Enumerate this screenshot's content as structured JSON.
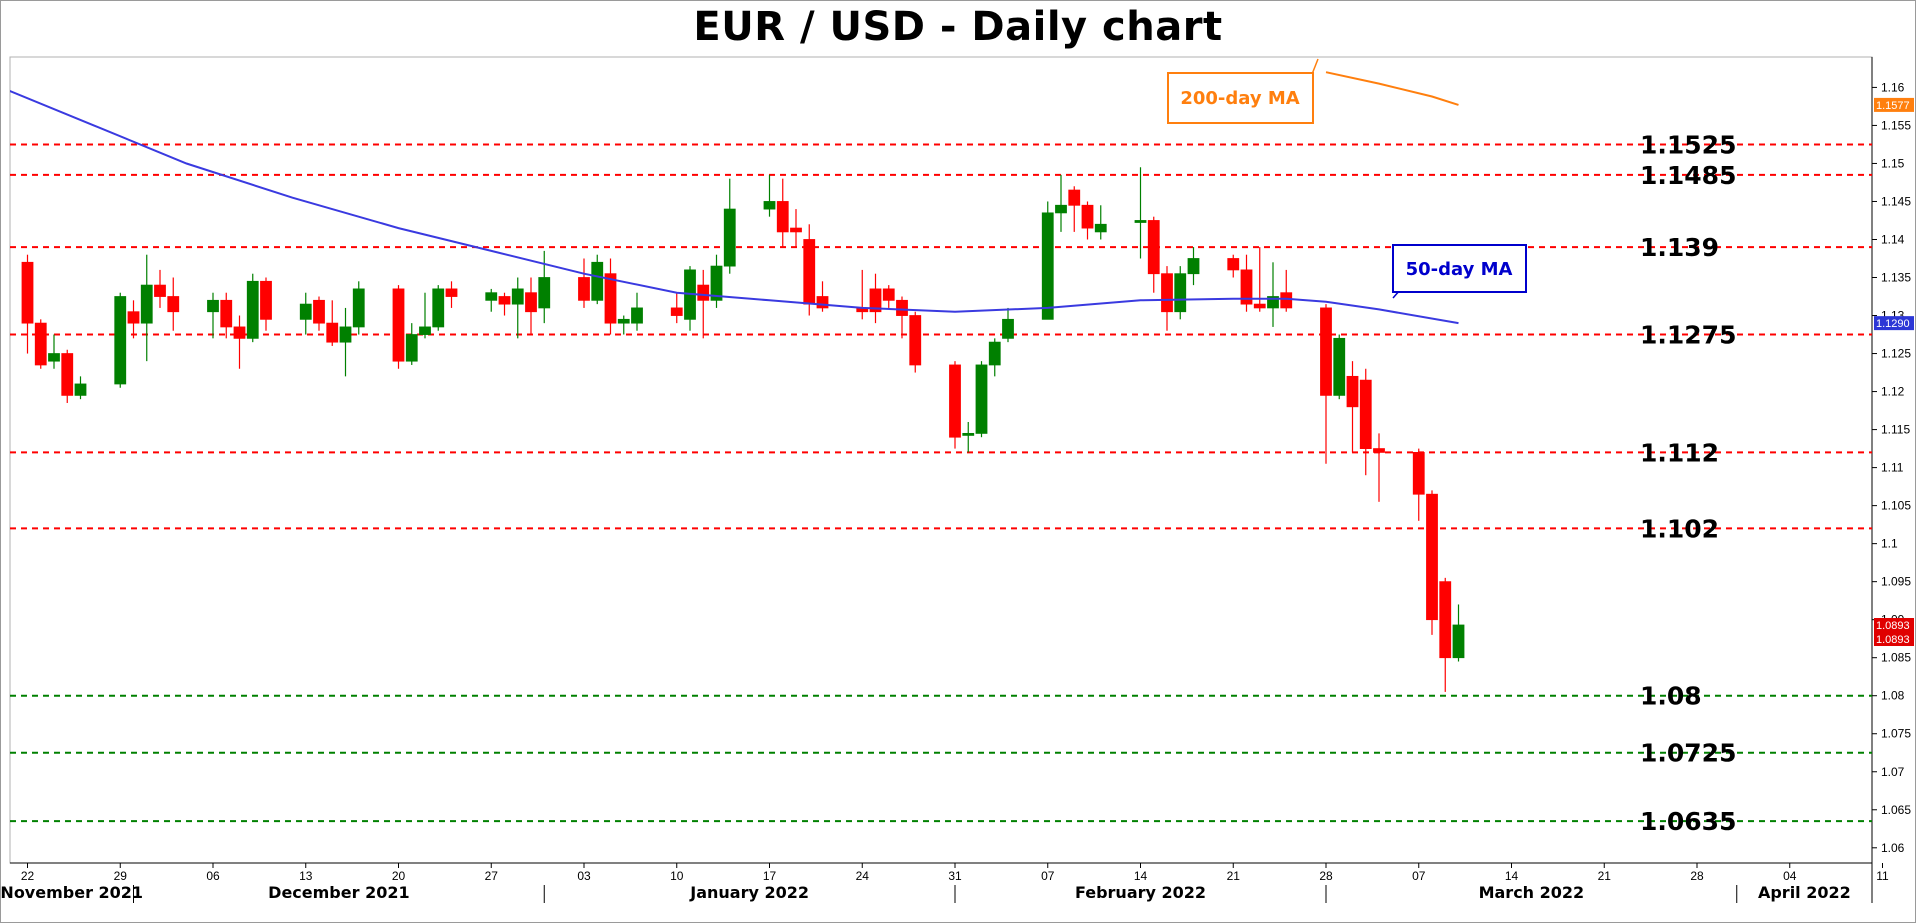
{
  "chart_data": {
    "type": "candlestick",
    "title": "EUR / USD - Daily chart",
    "ylim": [
      1.058,
      1.164
    ],
    "y_ticks": [
      "1.06",
      "1.065",
      "1.07",
      "1.075",
      "1.08",
      "1.085",
      "1.09",
      "1.095",
      "1.1",
      "1.105",
      "1.11",
      "1.115",
      "1.12",
      "1.125",
      "1.13",
      "1.135",
      "1.14",
      "1.145",
      "1.15",
      "1.155",
      "1.16"
    ],
    "x_ticks": [
      {
        "label": "22",
        "day": 0
      },
      {
        "label": "29",
        "day": 7
      },
      {
        "label": "06",
        "day": 14
      },
      {
        "label": "13",
        "day": 21
      },
      {
        "label": "20",
        "day": 28
      },
      {
        "label": "27",
        "day": 35
      },
      {
        "label": "03",
        "day": 42
      },
      {
        "label": "10",
        "day": 49
      },
      {
        "label": "17",
        "day": 56
      },
      {
        "label": "24",
        "day": 63
      },
      {
        "label": "31",
        "day": 70
      },
      {
        "label": "07",
        "day": 77
      },
      {
        "label": "14",
        "day": 84
      },
      {
        "label": "21",
        "day": 91
      },
      {
        "label": "28",
        "day": 98
      },
      {
        "label": "07",
        "day": 105
      },
      {
        "label": "14",
        "day": 112
      },
      {
        "label": "21",
        "day": 119
      },
      {
        "label": "28",
        "day": 126
      },
      {
        "label": "04",
        "day": 133
      },
      {
        "label": "11",
        "day": 140
      }
    ],
    "months": [
      {
        "label": "November 2021",
        "start_day": -2,
        "end_day": 8
      },
      {
        "label": "December 2021",
        "start_day": 8,
        "end_day": 39
      },
      {
        "label": "January 2022",
        "start_day": 39,
        "end_day": 70
      },
      {
        "label": "February 2022",
        "start_day": 70,
        "end_day": 98
      },
      {
        "label": "March 2022",
        "start_day": 98,
        "end_day": 129
      },
      {
        "label": "April 2022",
        "start_day": 129,
        "end_day": 142
      }
    ],
    "candles": [
      {
        "o": 1.137,
        "h": 1.138,
        "l": 1.125,
        "c": 1.129
      },
      {
        "o": 1.129,
        "h": 1.1295,
        "l": 1.123,
        "c": 1.1235
      },
      {
        "o": 1.124,
        "h": 1.1275,
        "l": 1.123,
        "c": 1.125
      },
      {
        "o": 1.125,
        "h": 1.1255,
        "l": 1.1185,
        "c": 1.1195
      },
      {
        "o": 1.1195,
        "h": 1.122,
        "l": 1.119,
        "c": 1.121
      },
      {
        "o": 1.121,
        "h": 1.133,
        "l": 1.1205,
        "c": 1.1325
      },
      {
        "o": 1.1305,
        "h": 1.132,
        "l": 1.127,
        "c": 1.129
      },
      {
        "o": 1.129,
        "h": 1.138,
        "l": 1.124,
        "c": 1.134
      },
      {
        "o": 1.134,
        "h": 1.136,
        "l": 1.131,
        "c": 1.1325
      },
      {
        "o": 1.1325,
        "h": 1.135,
        "l": 1.128,
        "c": 1.1305
      },
      {
        "o": 1.1305,
        "h": 1.133,
        "l": 1.127,
        "c": 1.132
      },
      {
        "o": 1.132,
        "h": 1.133,
        "l": 1.127,
        "c": 1.1285
      },
      {
        "o": 1.1285,
        "h": 1.13,
        "l": 1.123,
        "c": 1.127
      },
      {
        "o": 1.127,
        "h": 1.1355,
        "l": 1.1265,
        "c": 1.1345
      },
      {
        "o": 1.1345,
        "h": 1.135,
        "l": 1.128,
        "c": 1.1295
      },
      {
        "o": 1.1295,
        "h": 1.133,
        "l": 1.1275,
        "c": 1.1315
      },
      {
        "o": 1.132,
        "h": 1.1325,
        "l": 1.128,
        "c": 1.129
      },
      {
        "o": 1.129,
        "h": 1.132,
        "l": 1.126,
        "c": 1.1265
      },
      {
        "o": 1.1265,
        "h": 1.131,
        "l": 1.122,
        "c": 1.1285
      },
      {
        "o": 1.1285,
        "h": 1.1345,
        "l": 1.1275,
        "c": 1.1335
      },
      {
        "o": 1.1335,
        "h": 1.134,
        "l": 1.123,
        "c": 1.124
      },
      {
        "o": 1.124,
        "h": 1.129,
        "l": 1.1235,
        "c": 1.1275
      },
      {
        "o": 1.1275,
        "h": 1.133,
        "l": 1.127,
        "c": 1.1285
      },
      {
        "o": 1.1285,
        "h": 1.134,
        "l": 1.128,
        "c": 1.1335
      },
      {
        "o": 1.1335,
        "h": 1.1345,
        "l": 1.131,
        "c": 1.1325
      },
      {
        "o": 1.132,
        "h": 1.1335,
        "l": 1.1305,
        "c": 1.133
      },
      {
        "o": 1.1325,
        "h": 1.133,
        "l": 1.13,
        "c": 1.1315
      },
      {
        "o": 1.1315,
        "h": 1.135,
        "l": 1.127,
        "c": 1.1335
      },
      {
        "o": 1.133,
        "h": 1.135,
        "l": 1.1275,
        "c": 1.1305
      },
      {
        "o": 1.131,
        "h": 1.1385,
        "l": 1.129,
        "c": 1.135
      },
      {
        "o": 1.135,
        "h": 1.1375,
        "l": 1.131,
        "c": 1.132
      },
      {
        "o": 1.132,
        "h": 1.138,
        "l": 1.1315,
        "c": 1.137
      },
      {
        "o": 1.1355,
        "h": 1.1375,
        "l": 1.1275,
        "c": 1.129
      },
      {
        "o": 1.129,
        "h": 1.13,
        "l": 1.1275,
        "c": 1.1295
      },
      {
        "o": 1.129,
        "h": 1.133,
        "l": 1.128,
        "c": 1.131
      },
      {
        "o": 1.131,
        "h": 1.133,
        "l": 1.129,
        "c": 1.13
      },
      {
        "o": 1.1295,
        "h": 1.1365,
        "l": 1.128,
        "c": 1.136
      },
      {
        "o": 1.134,
        "h": 1.136,
        "l": 1.127,
        "c": 1.132
      },
      {
        "o": 1.132,
        "h": 1.138,
        "l": 1.131,
        "c": 1.1365
      },
      {
        "o": 1.1365,
        "h": 1.148,
        "l": 1.1355,
        "c": 1.144
      },
      {
        "o": 1.144,
        "h": 1.1485,
        "l": 1.143,
        "c": 1.145
      },
      {
        "o": 1.145,
        "h": 1.148,
        "l": 1.139,
        "c": 1.141
      },
      {
        "o": 1.1415,
        "h": 1.144,
        "l": 1.139,
        "c": 1.141
      },
      {
        "o": 1.14,
        "h": 1.142,
        "l": 1.13,
        "c": 1.1315
      },
      {
        "o": 1.1325,
        "h": 1.1345,
        "l": 1.1305,
        "c": 1.131
      },
      {
        "o": 1.131,
        "h": 1.136,
        "l": 1.1295,
        "c": 1.1305
      },
      {
        "o": 1.1335,
        "h": 1.1355,
        "l": 1.129,
        "c": 1.1305
      },
      {
        "o": 1.1335,
        "h": 1.134,
        "l": 1.131,
        "c": 1.132
      },
      {
        "o": 1.132,
        "h": 1.1325,
        "l": 1.127,
        "c": 1.13
      },
      {
        "o": 1.13,
        "h": 1.1305,
        "l": 1.1225,
        "c": 1.1235
      },
      {
        "o": 1.1235,
        "h": 1.124,
        "l": 1.1125,
        "c": 1.114
      },
      {
        "o": 1.1145,
        "h": 1.116,
        "l": 1.112,
        "c": 1.1145
      },
      {
        "o": 1.1145,
        "h": 1.124,
        "l": 1.114,
        "c": 1.1235
      },
      {
        "o": 1.1235,
        "h": 1.127,
        "l": 1.122,
        "c": 1.1265
      },
      {
        "o": 1.127,
        "h": 1.131,
        "l": 1.1265,
        "c": 1.1295
      },
      {
        "o": 1.1295,
        "h": 1.145,
        "l": 1.1295,
        "c": 1.1435
      },
      {
        "o": 1.1435,
        "h": 1.1485,
        "l": 1.141,
        "c": 1.1445
      },
      {
        "o": 1.1465,
        "h": 1.147,
        "l": 1.141,
        "c": 1.1445
      },
      {
        "o": 1.1445,
        "h": 1.145,
        "l": 1.14,
        "c": 1.1415
      },
      {
        "o": 1.141,
        "h": 1.1445,
        "l": 1.14,
        "c": 1.142
      },
      {
        "o": 1.1425,
        "h": 1.1495,
        "l": 1.1375,
        "c": 1.1425
      },
      {
        "o": 1.1425,
        "h": 1.143,
        "l": 1.133,
        "c": 1.1355
      },
      {
        "o": 1.1355,
        "h": 1.1365,
        "l": 1.128,
        "c": 1.1305
      },
      {
        "o": 1.1305,
        "h": 1.1365,
        "l": 1.1295,
        "c": 1.1355
      },
      {
        "o": 1.1355,
        "h": 1.139,
        "l": 1.134,
        "c": 1.1375
      },
      {
        "o": 1.1375,
        "h": 1.138,
        "l": 1.135,
        "c": 1.136
      },
      {
        "o": 1.136,
        "h": 1.138,
        "l": 1.1305,
        "c": 1.1315
      },
      {
        "o": 1.1315,
        "h": 1.139,
        "l": 1.1305,
        "c": 1.131
      },
      {
        "o": 1.131,
        "h": 1.137,
        "l": 1.1285,
        "c": 1.1325
      },
      {
        "o": 1.133,
        "h": 1.136,
        "l": 1.1305,
        "c": 1.131
      },
      {
        "o": 1.131,
        "h": 1.1315,
        "l": 1.1105,
        "c": 1.1195
      },
      {
        "o": 1.1195,
        "h": 1.1275,
        "l": 1.119,
        "c": 1.127
      },
      {
        "o": 1.122,
        "h": 1.124,
        "l": 1.112,
        "c": 1.118
      },
      {
        "o": 1.1215,
        "h": 1.123,
        "l": 1.109,
        "c": 1.1125
      },
      {
        "o": 1.1125,
        "h": 1.1145,
        "l": 1.1055,
        "c": 1.112
      },
      {
        "o": 1.112,
        "h": 1.1125,
        "l": 1.103,
        "c": 1.1065
      },
      {
        "o": 1.1065,
        "h": 1.107,
        "l": 1.088,
        "c": 1.09
      },
      {
        "o": 1.095,
        "h": 1.0955,
        "l": 1.0805,
        "c": 1.085
      },
      {
        "o": 1.085,
        "h": 1.092,
        "l": 1.0845,
        "c": 1.0893
      }
    ],
    "ma50": [
      [
        -2,
        1.16
      ],
      [
        5,
        1.155
      ],
      [
        12,
        1.15
      ],
      [
        20,
        1.1455
      ],
      [
        28,
        1.1415
      ],
      [
        35,
        1.1385
      ],
      [
        42,
        1.1355
      ],
      [
        49,
        1.133
      ],
      [
        56,
        1.132
      ],
      [
        63,
        1.131
      ],
      [
        70,
        1.1305
      ],
      [
        77,
        1.131
      ],
      [
        84,
        1.132
      ],
      [
        91,
        1.1322
      ],
      [
        95,
        1.1322
      ],
      [
        98,
        1.1318
      ],
      [
        102,
        1.1308
      ],
      [
        108,
        1.129
      ]
    ],
    "ma200": [
      [
        98,
        1.162
      ],
      [
        102,
        1.1605
      ],
      [
        106,
        1.1588
      ],
      [
        108,
        1.1577
      ]
    ],
    "levels": [
      {
        "value": 1.1525,
        "label": "1.1525",
        "type": "resistance"
      },
      {
        "value": 1.1485,
        "label": "1.1485",
        "type": "resistance"
      },
      {
        "value": 1.139,
        "label": "1.139",
        "type": "resistance"
      },
      {
        "value": 1.1275,
        "label": "1.1275",
        "type": "resistance"
      },
      {
        "value": 1.112,
        "label": "1.112",
        "type": "resistance"
      },
      {
        "value": 1.102,
        "label": "1.102",
        "type": "resistance"
      },
      {
        "value": 1.08,
        "label": "1.08",
        "type": "support"
      },
      {
        "value": 1.0725,
        "label": "1.0725",
        "type": "support"
      },
      {
        "value": 1.0635,
        "label": "1.0635",
        "type": "support"
      }
    ],
    "annotations": [
      {
        "label": "200-day MA",
        "color": "#ff7f0e"
      },
      {
        "label": "50-day MA",
        "color": "#0000cc"
      }
    ],
    "price_tags": [
      {
        "value": 1.1577,
        "label": "1.1577",
        "color": "#ff7f0e"
      },
      {
        "value": 1.129,
        "label": "1.1290",
        "color": "#2c37d6"
      },
      {
        "value": 1.0893,
        "label": "1.0893",
        "color": "#e00000"
      },
      {
        "value": 1.0893,
        "label": "1.0893",
        "color": "#e00000"
      }
    ],
    "colors": {
      "up": "#008000",
      "down": "#ff0000",
      "resistance_line": "#ff0000",
      "support_line": "#008000"
    }
  }
}
